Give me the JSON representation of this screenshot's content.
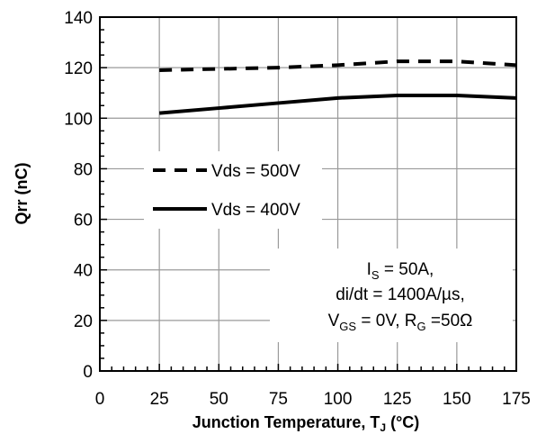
{
  "chart_data": {
    "type": "line",
    "xlabel": "Junction Temperature, T",
    "xlabel_sub": "J",
    "xlabel_unit": " (°C)",
    "ylabel": "Qrr (nC)",
    "xlim": [
      0,
      175
    ],
    "ylim": [
      0,
      140
    ],
    "x_ticks": [
      0,
      25,
      50,
      75,
      100,
      125,
      150,
      175
    ],
    "y_ticks": [
      0,
      20,
      40,
      60,
      80,
      100,
      120,
      140
    ],
    "grid": true,
    "legend_position": "middle-left",
    "series": [
      {
        "name": "Vds = 500V",
        "style": "dashed",
        "x": [
          25,
          50,
          75,
          100,
          125,
          150,
          175
        ],
        "y": [
          119,
          119.5,
          120,
          121,
          122.5,
          122.5,
          121
        ]
      },
      {
        "name": "Vds = 400V",
        "style": "solid",
        "x": [
          25,
          50,
          75,
          100,
          125,
          150,
          175
        ],
        "y": [
          102,
          104,
          106,
          108,
          109,
          109,
          108
        ]
      }
    ],
    "annotation": {
      "line1": {
        "main": "I",
        "sub": "S",
        "rest": " = 50A,"
      },
      "line2": "di/dt = 1400A/µs,",
      "line3": {
        "v": "V",
        "vsub": "GS",
        "mid": " = 0V, R",
        "rsub": "G",
        "end": " =50Ω"
      }
    },
    "colors": {
      "line": "#000000",
      "grid": "#9a9a9a",
      "background": "#ffffff"
    }
  }
}
